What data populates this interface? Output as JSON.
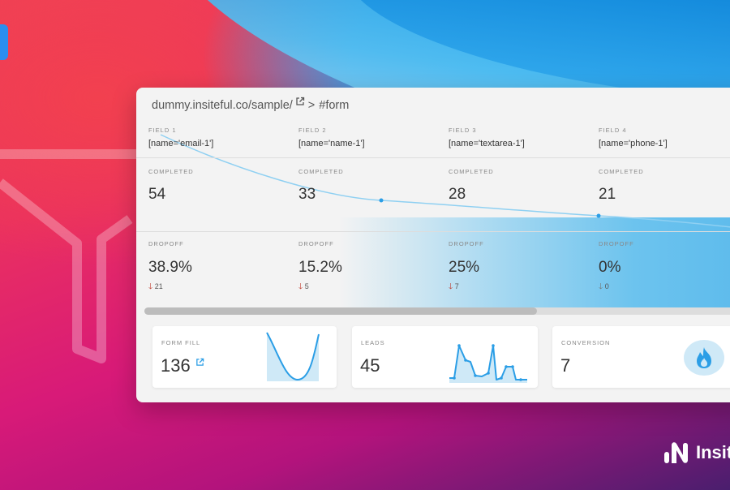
{
  "breadcrumb": {
    "url": "dummy.insiteful.co/sample/",
    "separator": ">",
    "form": "#form"
  },
  "fields": [
    {
      "label": "FIELD 1",
      "selector": "[name='email-1']",
      "completed_label": "COMPLETED",
      "completed": "54",
      "dropoff_label": "DROPOFF",
      "dropoff": "38.9%",
      "dropoff_count": "21"
    },
    {
      "label": "FIELD 2",
      "selector": "[name='name-1']",
      "completed_label": "COMPLETED",
      "completed": "33",
      "dropoff_label": "DROPOFF",
      "dropoff": "15.2%",
      "dropoff_count": "5"
    },
    {
      "label": "FIELD 3",
      "selector": "[name='textarea-1']",
      "completed_label": "COMPLETED",
      "completed": "28",
      "dropoff_label": "DROPOFF",
      "dropoff": "25%",
      "dropoff_count": "7"
    },
    {
      "label": "FIELD 4",
      "selector": "[name='phone-1']",
      "completed_label": "COMPLETED",
      "completed": "21",
      "dropoff_label": "DROPOFF",
      "dropoff": "0%",
      "dropoff_count": "0"
    }
  ],
  "scroll": {
    "position": 0,
    "visible_fraction": 0.64
  },
  "cards": {
    "form_fill": {
      "label": "FORM FILL",
      "value": "136",
      "icon": "external-link-icon"
    },
    "leads": {
      "label": "LEADS",
      "value": "45"
    },
    "conversion": {
      "label": "CONVERSION",
      "value": "7",
      "icon": "flame-icon"
    }
  },
  "brand": {
    "name": "Insit"
  },
  "colors": {
    "accent": "#2b9ee6",
    "down_arrow": "#c0392b",
    "panel_bg": "#f3f3f3"
  }
}
